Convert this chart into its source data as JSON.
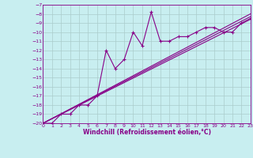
{
  "xlabel": "Windchill (Refroidissement éolien,°C)",
  "bg_color": "#c8eef0",
  "line_color": "#880088",
  "grid_color": "#aacccc",
  "xmin": 0,
  "xmax": 23,
  "ymin": -20,
  "ymax": -7,
  "xticks": [
    0,
    1,
    2,
    3,
    4,
    5,
    6,
    7,
    8,
    9,
    10,
    11,
    12,
    13,
    14,
    15,
    16,
    17,
    18,
    19,
    20,
    21,
    22,
    23
  ],
  "yticks": [
    -7,
    -8,
    -9,
    -10,
    -11,
    -12,
    -13,
    -14,
    -15,
    -16,
    -17,
    -18,
    -19,
    -20
  ],
  "data_x": [
    0,
    1,
    2,
    3,
    4,
    5,
    6,
    7,
    8,
    9,
    10,
    11,
    12,
    13,
    14,
    15,
    16,
    17,
    18,
    19,
    20,
    21,
    22,
    23
  ],
  "data_y": [
    -20,
    -20,
    -19,
    -19,
    -18,
    -18,
    -17,
    -12,
    -14,
    -13,
    -10,
    -11.5,
    -7.8,
    -11.0,
    -11.0,
    -10.5,
    -10.5,
    -10.0,
    -9.5,
    -9.5,
    -10.0,
    -10.0,
    -9.0,
    -8.5
  ],
  "ref_lines": [
    [
      [
        0,
        23
      ],
      [
        -20.0,
        -8.0
      ]
    ],
    [
      [
        0,
        23
      ],
      [
        -20.0,
        -8.3
      ]
    ],
    [
      [
        0,
        23
      ],
      [
        -20.0,
        -8.6
      ]
    ]
  ]
}
